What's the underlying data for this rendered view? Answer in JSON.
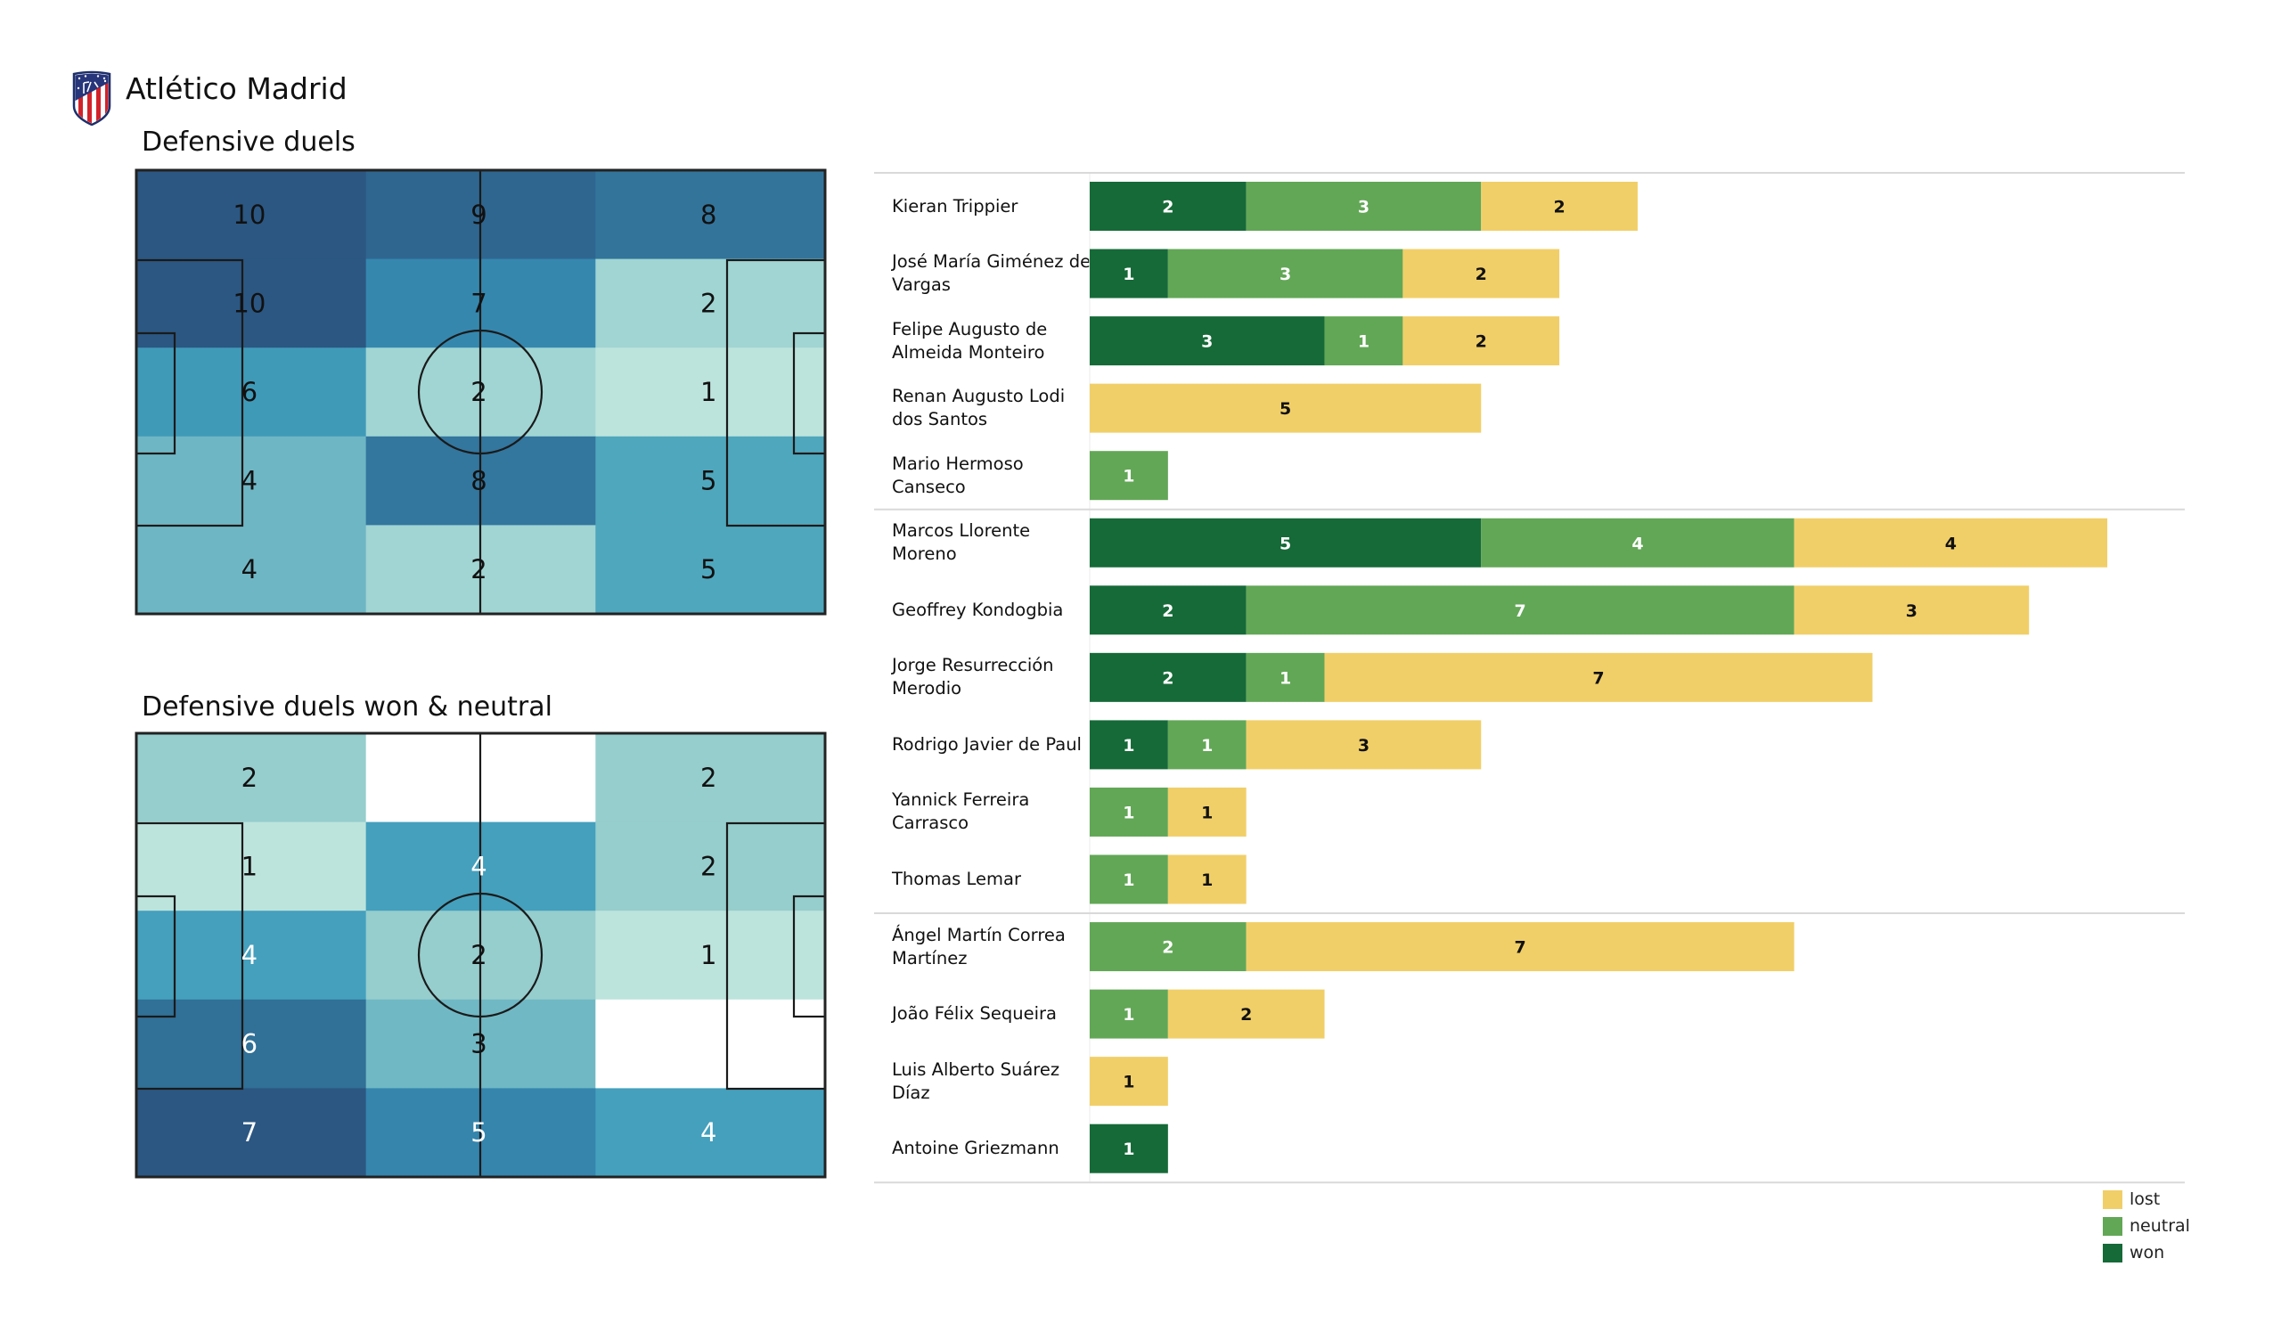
{
  "header": {
    "team_name": "Atlético Madrid",
    "logo_icon": "atletico-madrid-crest-icon"
  },
  "colors": {
    "won": "#166a38",
    "neutral": "#62a756",
    "lost": "#f1cf68",
    "separator": "#d9d9d9",
    "pitch_line": "#1a1a1a"
  },
  "chart_data": [
    {
      "type": "heatmap",
      "title": "Defensive duels",
      "rows": 5,
      "cols": 3,
      "values": [
        [
          10,
          9,
          8
        ],
        [
          10,
          7,
          2
        ],
        [
          6,
          2,
          1
        ],
        [
          4,
          8,
          5
        ],
        [
          4,
          2,
          5
        ]
      ],
      "cell_colors": [
        [
          "#2b5782",
          "#2f6690",
          "#33749b"
        ],
        [
          "#2b5782",
          "#3587ae",
          "#a0d5d3"
        ],
        [
          "#3f9ab8",
          "#a0d5d3",
          "#bde4dc"
        ],
        [
          "#6fb6c4",
          "#33769e",
          "#4fa7bd"
        ],
        [
          "#6fb6c4",
          "#a0d5d3",
          "#4fa7bd"
        ]
      ],
      "label_colors": [
        [
          "#111111",
          "#111111",
          "#111111"
        ],
        [
          "#111111",
          "#111111",
          "#111111"
        ],
        [
          "#111111",
          "#111111",
          "#111111"
        ],
        [
          "#111111",
          "#111111",
          "#111111"
        ],
        [
          "#111111",
          "#111111",
          "#111111"
        ]
      ]
    },
    {
      "type": "heatmap",
      "title": "Defensive duels won & neutral",
      "rows": 5,
      "cols": 3,
      "values": [
        [
          2,
          0,
          2
        ],
        [
          1,
          4,
          2
        ],
        [
          4,
          2,
          1
        ],
        [
          6,
          3,
          0
        ],
        [
          7,
          5,
          4
        ]
      ],
      "show_label": [
        [
          true,
          false,
          true
        ],
        [
          true,
          true,
          true
        ],
        [
          true,
          true,
          true
        ],
        [
          true,
          true,
          false
        ],
        [
          true,
          true,
          true
        ]
      ],
      "cell_colors": [
        [
          "#96cdcd",
          "#ffffff",
          "#96cdcd"
        ],
        [
          "#bde4dc",
          "#44a0bd",
          "#96cdcd"
        ],
        [
          "#44a0bd",
          "#96cdcd",
          "#bde4dc"
        ],
        [
          "#317097",
          "#70b8c4",
          "#ffffff"
        ],
        [
          "#2b5782",
          "#3585ad",
          "#44a0bd"
        ]
      ],
      "label_colors": [
        [
          "#111111",
          "#111111",
          "#111111"
        ],
        [
          "#111111",
          "#ffffff",
          "#111111"
        ],
        [
          "#ffffff",
          "#111111",
          "#111111"
        ],
        [
          "#ffffff",
          "#111111",
          "#111111"
        ],
        [
          "#ffffff",
          "#ffffff",
          "#ffffff"
        ]
      ]
    },
    {
      "type": "bar",
      "stacked": true,
      "orientation": "horizontal",
      "categories": [
        "Kieran Trippier",
        "José María Giménez de Vargas",
        "Felipe Augusto de Almeida Monteiro",
        "Renan Augusto Lodi dos Santos",
        "Mario Hermoso Canseco",
        "Marcos Llorente Moreno",
        "Geoffrey Kondogbia",
        "Jorge Resurrección Merodio",
        "Rodrigo Javier de Paul",
        "Yannick Ferreira Carrasco",
        "Thomas Lemar",
        "Ángel Martín Correa Martínez",
        "João Félix Sequeira",
        "Luis Alberto Suárez Díaz",
        "Antoine Griezmann"
      ],
      "category_labels": [
        [
          "Kieran Trippier"
        ],
        [
          "José María Giménez de",
          "Vargas"
        ],
        [
          "Felipe Augusto de",
          "Almeida Monteiro"
        ],
        [
          "Renan Augusto Lodi",
          "dos Santos"
        ],
        [
          "Mario Hermoso",
          "Canseco"
        ],
        [
          "Marcos Llorente",
          "Moreno"
        ],
        [
          "Geoffrey Kondogbia"
        ],
        [
          "Jorge Resurrección",
          "Merodio"
        ],
        [
          "Rodrigo Javier de Paul"
        ],
        [
          "Yannick Ferreira",
          "Carrasco"
        ],
        [
          "Thomas Lemar"
        ],
        [
          "Ángel Martín Correa",
          "Martínez"
        ],
        [
          "João Félix Sequeira"
        ],
        [
          "Luis Alberto Suárez",
          "Díaz"
        ],
        [
          "Antoine Griezmann"
        ]
      ],
      "groups_after_index": [
        4,
        10
      ],
      "series": [
        {
          "name": "won",
          "values": [
            2,
            1,
            3,
            0,
            0,
            5,
            2,
            2,
            1,
            0,
            0,
            0,
            0,
            0,
            1
          ]
        },
        {
          "name": "neutral",
          "values": [
            3,
            3,
            1,
            0,
            1,
            4,
            7,
            1,
            1,
            1,
            1,
            2,
            1,
            0,
            0
          ]
        },
        {
          "name": "lost",
          "values": [
            2,
            2,
            2,
            5,
            0,
            4,
            3,
            7,
            3,
            1,
            1,
            7,
            2,
            1,
            0
          ]
        }
      ],
      "legend": {
        "position": "bottom-right",
        "entries": [
          "lost",
          "neutral",
          "won"
        ]
      },
      "xlabel": "",
      "ylabel": ""
    }
  ]
}
